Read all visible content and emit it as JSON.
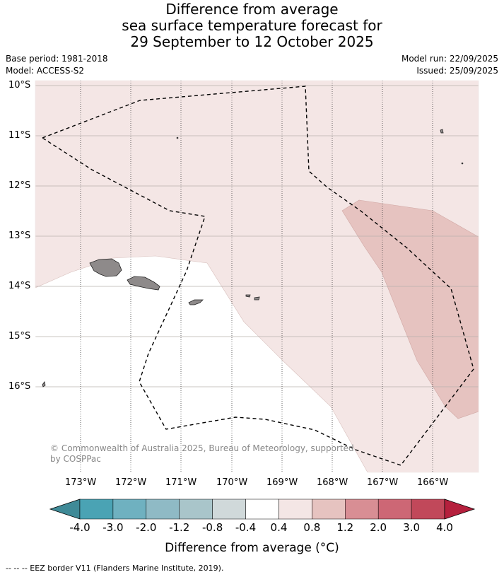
{
  "title": {
    "line1": "Difference from average",
    "line2": "sea surface temperature forecast for",
    "line3": "29 September to 12 October 2025"
  },
  "meta": {
    "base_period": "Base period: 1981-2018",
    "model": "Model: ACCESS-S2",
    "model_run": "Model run: 22/09/2025",
    "issued": "Issued: 25/09/2025"
  },
  "axes": {
    "lat_labels": [
      "10°S",
      "11°S",
      "12°S",
      "13°S",
      "14°S",
      "15°S",
      "16°S"
    ],
    "lon_labels": [
      "173°W",
      "172°W",
      "171°W",
      "170°W",
      "169°W",
      "168°W",
      "167°W",
      "166°W"
    ],
    "lat_gridlines": "solid",
    "lon_gridlines": "dotted"
  },
  "legend": {
    "title": "Difference from average (°C)",
    "ticks": [
      "-4.0",
      "-3.0",
      "-2.0",
      "-1.2",
      "-0.8",
      "-0.4",
      "0.4",
      "0.8",
      "1.2",
      "2.0",
      "3.0",
      "4.0"
    ],
    "colors": [
      "#3f8a97",
      "#4aa3b4",
      "#6fb1c0",
      "#8fbac5",
      "#a9c5ca",
      "#d0d9da",
      "#ffffff",
      "#f4e6e5",
      "#e6c3c0",
      "#d88e94",
      "#cd6775",
      "#c1485a",
      "#b5203d"
    ]
  },
  "copyright": "© Commonwealth of Australia 2025, Bureau of Meteorology, supported by COSPPac",
  "footer": "-- -- -- EEZ border V11 (Flanders Marine Institute, 2019).",
  "map_colors": {
    "band_0_4_to_0_8": "#f4e6e5",
    "band_0_8_to_1_2": "#e6c3c0",
    "neutral": "#ffffff",
    "land": "#8e8a8a"
  }
}
